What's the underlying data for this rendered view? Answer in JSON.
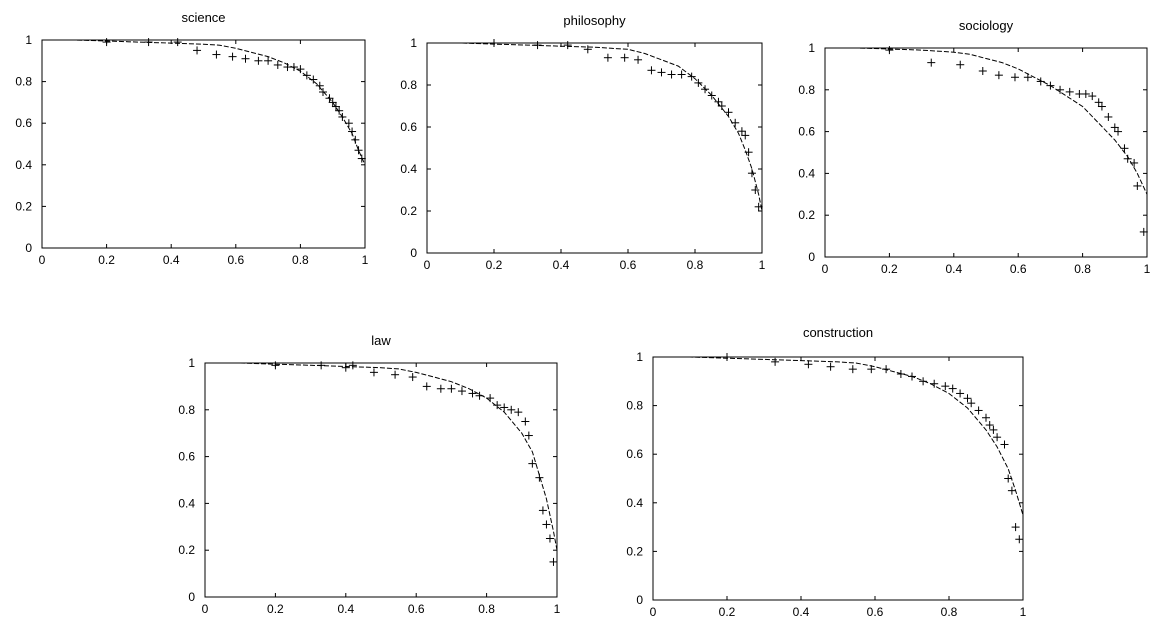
{
  "chart_data": [
    {
      "type": "scatter",
      "title": "science",
      "xlim": [
        0,
        1
      ],
      "ylim": [
        0,
        1
      ],
      "xticks": [
        "0",
        "0.2",
        "0.4",
        "0.6",
        "0.8",
        "1"
      ],
      "yticks": [
        "0",
        "0.2",
        "0.4",
        "0.6",
        "0.8",
        "1"
      ],
      "series": [
        {
          "style": "plus-markers",
          "x": [
            0.2,
            0.33,
            0.42,
            0.48,
            0.54,
            0.59,
            0.63,
            0.67,
            0.7,
            0.73,
            0.76,
            0.78,
            0.8,
            0.82,
            0.84,
            0.86,
            0.87,
            0.89,
            0.9,
            0.91,
            0.92,
            0.93,
            0.95,
            0.96,
            0.97,
            0.98,
            0.99
          ],
          "y": [
            0.99,
            0.99,
            0.99,
            0.95,
            0.93,
            0.92,
            0.91,
            0.9,
            0.9,
            0.88,
            0.87,
            0.87,
            0.86,
            0.83,
            0.81,
            0.78,
            0.75,
            0.72,
            0.7,
            0.68,
            0.66,
            0.63,
            0.6,
            0.56,
            0.52,
            0.47,
            0.43
          ]
        },
        {
          "style": "dashed-line",
          "x": [
            0,
            0.1,
            0.2,
            0.3,
            0.4,
            0.5,
            0.55,
            0.6,
            0.65,
            0.7,
            0.75,
            0.8,
            0.85,
            0.9,
            0.93,
            0.96,
            0.98,
            1.0
          ],
          "y": [
            1.0,
            1.0,
            0.995,
            0.99,
            0.985,
            0.98,
            0.975,
            0.96,
            0.94,
            0.92,
            0.89,
            0.85,
            0.79,
            0.7,
            0.63,
            0.55,
            0.47,
            0.4
          ]
        }
      ]
    },
    {
      "type": "scatter",
      "title": "philosophy",
      "xlim": [
        0,
        1
      ],
      "ylim": [
        0,
        1
      ],
      "xticks": [
        "0",
        "0.2",
        "0.4",
        "0.6",
        "0.8",
        "1"
      ],
      "yticks": [
        "0",
        "0.2",
        "0.4",
        "0.6",
        "0.8",
        "1"
      ],
      "series": [
        {
          "style": "plus-markers",
          "x": [
            0.2,
            0.33,
            0.42,
            0.48,
            0.54,
            0.59,
            0.63,
            0.67,
            0.7,
            0.73,
            0.76,
            0.79,
            0.81,
            0.83,
            0.85,
            0.87,
            0.88,
            0.9,
            0.92,
            0.94,
            0.95,
            0.96,
            0.97,
            0.98,
            0.99
          ],
          "y": [
            1.0,
            0.99,
            0.99,
            0.97,
            0.93,
            0.93,
            0.92,
            0.87,
            0.86,
            0.85,
            0.85,
            0.84,
            0.81,
            0.78,
            0.75,
            0.72,
            0.7,
            0.67,
            0.62,
            0.58,
            0.56,
            0.48,
            0.38,
            0.3,
            0.22
          ]
        },
        {
          "style": "dashed-line",
          "x": [
            0,
            0.1,
            0.2,
            0.3,
            0.4,
            0.5,
            0.55,
            0.6,
            0.65,
            0.7,
            0.75,
            0.8,
            0.85,
            0.9,
            0.93,
            0.95,
            0.97,
            0.99,
            1.0
          ],
          "y": [
            1.0,
            1.0,
            0.995,
            0.99,
            0.985,
            0.98,
            0.975,
            0.97,
            0.95,
            0.92,
            0.89,
            0.83,
            0.75,
            0.65,
            0.57,
            0.49,
            0.4,
            0.28,
            0.2
          ]
        }
      ]
    },
    {
      "type": "scatter",
      "title": "sociology",
      "xlim": [
        0,
        1
      ],
      "ylim": [
        0,
        1
      ],
      "xticks": [
        "0",
        "0.2",
        "0.4",
        "0.6",
        "0.8",
        "1"
      ],
      "yticks": [
        "0",
        "0.2",
        "0.4",
        "0.6",
        "0.8",
        "1"
      ],
      "series": [
        {
          "style": "plus-markers",
          "x": [
            0.2,
            0.33,
            0.42,
            0.49,
            0.54,
            0.59,
            0.63,
            0.67,
            0.7,
            0.73,
            0.76,
            0.79,
            0.81,
            0.83,
            0.85,
            0.86,
            0.88,
            0.9,
            0.91,
            0.93,
            0.94,
            0.96,
            0.97,
            0.99
          ],
          "y": [
            0.99,
            0.93,
            0.92,
            0.89,
            0.87,
            0.86,
            0.86,
            0.84,
            0.82,
            0.8,
            0.79,
            0.78,
            0.78,
            0.77,
            0.74,
            0.72,
            0.67,
            0.62,
            0.6,
            0.52,
            0.47,
            0.45,
            0.34,
            0.12
          ]
        },
        {
          "style": "dashed-line",
          "x": [
            0,
            0.1,
            0.2,
            0.3,
            0.4,
            0.45,
            0.5,
            0.55,
            0.6,
            0.65,
            0.7,
            0.75,
            0.8,
            0.85,
            0.9,
            0.94,
            0.97,
            1.0
          ],
          "y": [
            1.0,
            1.0,
            0.995,
            0.99,
            0.98,
            0.97,
            0.95,
            0.93,
            0.9,
            0.86,
            0.82,
            0.77,
            0.72,
            0.64,
            0.56,
            0.48,
            0.4,
            0.3
          ]
        }
      ]
    },
    {
      "type": "scatter",
      "title": "law",
      "xlim": [
        0,
        1
      ],
      "ylim": [
        0,
        1
      ],
      "xticks": [
        "0",
        "0.2",
        "0.4",
        "0.6",
        "0.8",
        "1"
      ],
      "yticks": [
        "0",
        "0.2",
        "0.4",
        "0.6",
        "0.8",
        "1"
      ],
      "series": [
        {
          "style": "plus-markers",
          "x": [
            0.2,
            0.33,
            0.4,
            0.42,
            0.48,
            0.54,
            0.59,
            0.63,
            0.67,
            0.7,
            0.73,
            0.76,
            0.78,
            0.81,
            0.83,
            0.85,
            0.87,
            0.89,
            0.91,
            0.92,
            0.93,
            0.95,
            0.96,
            0.97,
            0.98,
            0.99
          ],
          "y": [
            0.99,
            0.99,
            0.98,
            0.99,
            0.96,
            0.95,
            0.94,
            0.9,
            0.89,
            0.89,
            0.88,
            0.87,
            0.86,
            0.85,
            0.82,
            0.81,
            0.8,
            0.79,
            0.75,
            0.69,
            0.57,
            0.51,
            0.37,
            0.31,
            0.25,
            0.15
          ]
        },
        {
          "style": "dashed-line",
          "x": [
            0,
            0.1,
            0.2,
            0.3,
            0.4,
            0.5,
            0.55,
            0.6,
            0.65,
            0.7,
            0.75,
            0.8,
            0.85,
            0.9,
            0.93,
            0.95,
            0.97,
            0.99,
            1.0
          ],
          "y": [
            1.0,
            1.0,
            0.995,
            0.99,
            0.985,
            0.98,
            0.975,
            0.96,
            0.94,
            0.92,
            0.89,
            0.85,
            0.79,
            0.7,
            0.62,
            0.52,
            0.42,
            0.28,
            0.2
          ]
        }
      ]
    },
    {
      "type": "scatter",
      "title": "construction",
      "xlim": [
        0,
        1
      ],
      "ylim": [
        0,
        1
      ],
      "xticks": [
        "0",
        "0.2",
        "0.4",
        "0.6",
        "0.8",
        "1"
      ],
      "yticks": [
        "0",
        "0.2",
        "0.4",
        "0.6",
        "0.8",
        "1"
      ],
      "series": [
        {
          "style": "plus-markers",
          "x": [
            0.2,
            0.33,
            0.42,
            0.48,
            0.54,
            0.59,
            0.63,
            0.67,
            0.7,
            0.73,
            0.76,
            0.79,
            0.81,
            0.83,
            0.85,
            0.86,
            0.88,
            0.9,
            0.91,
            0.92,
            0.93,
            0.95,
            0.96,
            0.97,
            0.98,
            0.99
          ],
          "y": [
            1.0,
            0.98,
            0.97,
            0.96,
            0.95,
            0.95,
            0.95,
            0.93,
            0.92,
            0.9,
            0.89,
            0.88,
            0.87,
            0.85,
            0.83,
            0.81,
            0.78,
            0.75,
            0.72,
            0.7,
            0.67,
            0.64,
            0.5,
            0.45,
            0.3,
            0.25
          ]
        },
        {
          "style": "dashed-line",
          "x": [
            0,
            0.1,
            0.2,
            0.3,
            0.4,
            0.5,
            0.55,
            0.6,
            0.65,
            0.7,
            0.75,
            0.8,
            0.85,
            0.9,
            0.93,
            0.96,
            0.98,
            1.0
          ],
          "y": [
            1.0,
            1.0,
            0.995,
            0.99,
            0.985,
            0.98,
            0.975,
            0.96,
            0.94,
            0.92,
            0.89,
            0.85,
            0.79,
            0.7,
            0.63,
            0.54,
            0.45,
            0.35
          ]
        }
      ]
    }
  ]
}
